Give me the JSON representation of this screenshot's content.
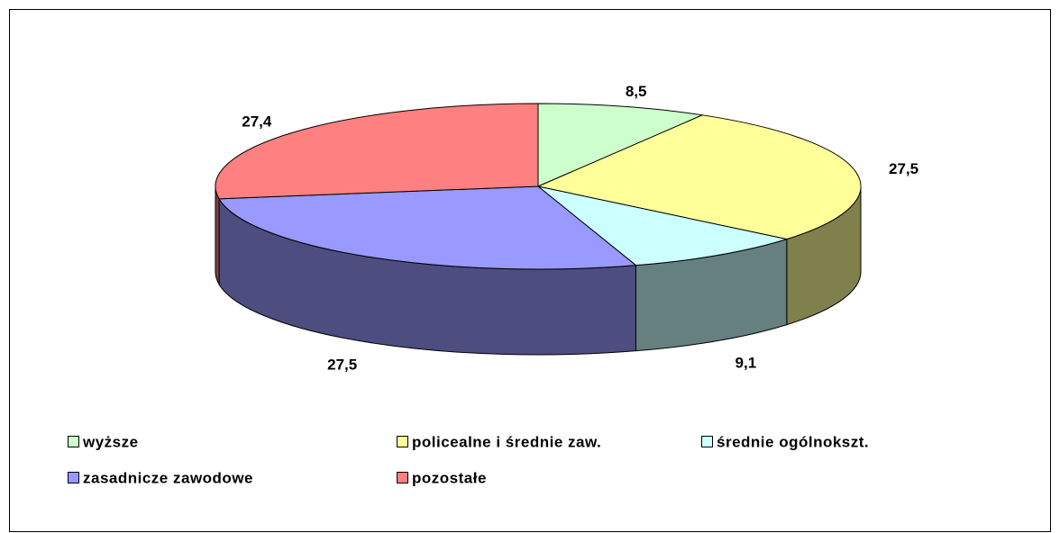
{
  "chart_data": {
    "type": "pie3d",
    "categories": [
      "wyższe",
      "policealne i średnie zaw.",
      "średnie ogólnokszt.",
      "zasadnicze zawodowe",
      "pozostałe"
    ],
    "values": [
      8.5,
      27.5,
      9.1,
      27.5,
      27.4
    ],
    "value_labels": [
      "8,5",
      "27,5",
      "9,1",
      "27,5",
      "27,4"
    ],
    "colors": [
      "#ccffcc",
      "#ffff99",
      "#ccffff",
      "#9999ff",
      "#ff8080"
    ],
    "legend": "bottom"
  }
}
